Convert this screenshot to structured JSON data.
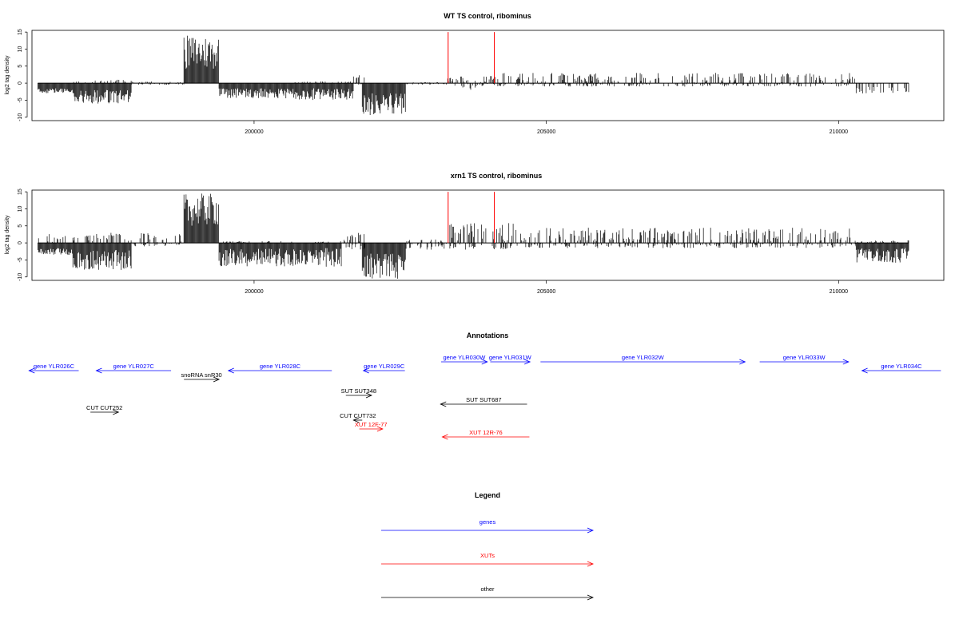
{
  "colors": {
    "gene": "#0000ff",
    "xut": "#ff0000",
    "other": "#000000",
    "marker": "#ff0000",
    "bars": "#000000"
  },
  "chart_data": [
    {
      "type": "bar",
      "title": "WT TS control, ribominus",
      "ylabel": "log2 tag density",
      "xlim": [
        196200,
        211800
      ],
      "ylim": [
        -11,
        15.5
      ],
      "yticks": [
        15,
        10,
        5,
        0,
        -5,
        -10
      ],
      "xticks": [
        200000,
        205000,
        210000
      ],
      "marker_positions": [
        203320,
        204110
      ],
      "segments": [
        {
          "from": 196300,
          "to": 196900,
          "min": 0,
          "max": 0,
          "neg_min": -1.5,
          "neg_max": -3
        },
        {
          "from": 196900,
          "to": 197000,
          "min": 0,
          "max": 0,
          "neg_min": 0,
          "neg_max": 0
        },
        {
          "from": 196900,
          "to": 197900,
          "min": 0,
          "max": 1,
          "neg_min": -2,
          "neg_max": -6
        },
        {
          "from": 197900,
          "to": 198800,
          "min": 0,
          "max": 0.5,
          "neg_min": 0,
          "neg_max": -0.5
        },
        {
          "from": 198800,
          "to": 199400,
          "min": 4,
          "max": 14,
          "neg_min": 0,
          "neg_max": 0
        },
        {
          "from": 199400,
          "to": 200700,
          "min": 0,
          "max": 0,
          "neg_min": -1.5,
          "neg_max": -4.5
        },
        {
          "from": 200700,
          "to": 201700,
          "min": 0,
          "max": 0.5,
          "neg_min": -1.5,
          "neg_max": -5
        },
        {
          "from": 201700,
          "to": 201900,
          "min": 1,
          "max": 2.5,
          "neg_min": 0,
          "neg_max": -0.5
        },
        {
          "from": 201850,
          "to": 202600,
          "min": 0,
          "max": 0,
          "neg_min": -3,
          "neg_max": -9.5
        },
        {
          "from": 202600,
          "to": 203300,
          "min": 0,
          "max": 0.3,
          "neg_min": 0,
          "neg_max": -0.5
        },
        {
          "from": 203300,
          "to": 203800,
          "min": 0,
          "max": 2,
          "neg_min": 0,
          "neg_max": -2
        },
        {
          "from": 203800,
          "to": 210300,
          "min": 0,
          "max": 3,
          "neg_min": 0,
          "neg_max": -1
        },
        {
          "from": 210300,
          "to": 211200,
          "min": 0,
          "max": 0,
          "neg_min": -1,
          "neg_max": -3
        }
      ]
    },
    {
      "type": "bar",
      "title": "xrn1 TS control, ribominus",
      "ylabel": "log2 tag density",
      "xlim": [
        196200,
        211800
      ],
      "ylim": [
        -11,
        15.5
      ],
      "yticks": [
        15,
        10,
        5,
        0,
        -5,
        -10
      ],
      "xticks": [
        200000,
        205000,
        210000
      ],
      "marker_positions": [
        203320,
        204110
      ],
      "segments": [
        {
          "from": 196300,
          "to": 196900,
          "min": 0,
          "max": 3,
          "neg_min": -1.5,
          "neg_max": -3.5
        },
        {
          "from": 196900,
          "to": 197900,
          "min": 0,
          "max": 3,
          "neg_min": -2,
          "neg_max": -8
        },
        {
          "from": 197900,
          "to": 198800,
          "min": 0,
          "max": 3,
          "neg_min": 0,
          "neg_max": -1
        },
        {
          "from": 198800,
          "to": 199400,
          "min": 5,
          "max": 14.5,
          "neg_min": 0,
          "neg_max": 0
        },
        {
          "from": 199400,
          "to": 201500,
          "min": 0,
          "max": 0.5,
          "neg_min": -1.5,
          "neg_max": -7
        },
        {
          "from": 201500,
          "to": 201900,
          "min": 0,
          "max": 3,
          "neg_min": 0,
          "neg_max": -2
        },
        {
          "from": 201850,
          "to": 202600,
          "min": 0,
          "max": 0,
          "neg_min": -3,
          "neg_max": -10.5
        },
        {
          "from": 202600,
          "to": 203300,
          "min": 0,
          "max": 1,
          "neg_min": 0,
          "neg_max": -2
        },
        {
          "from": 203300,
          "to": 204500,
          "min": 0.5,
          "max": 6,
          "neg_min": 0,
          "neg_max": -2
        },
        {
          "from": 204500,
          "to": 210300,
          "min": 0.5,
          "max": 4.5,
          "neg_min": 0,
          "neg_max": -1.5
        },
        {
          "from": 210300,
          "to": 211200,
          "min": 0,
          "max": 1,
          "neg_min": -1.5,
          "neg_max": -6
        }
      ]
    }
  ],
  "annotations": {
    "title": "Annotations",
    "items": [
      {
        "label": "gene YLR026C",
        "type": "gene",
        "start": 196150,
        "end": 197000,
        "dir": "-",
        "row": 0
      },
      {
        "label": "gene YLR027C",
        "type": "gene",
        "start": 197300,
        "end": 198580,
        "dir": "-",
        "row": 0
      },
      {
        "label": "snoRNA snR30",
        "type": "other",
        "start": 198800,
        "end": 199400,
        "dir": "+",
        "row": 1
      },
      {
        "label": "gene YLR028C",
        "type": "gene",
        "start": 199560,
        "end": 201330,
        "dir": "-",
        "row": 0
      },
      {
        "label": "gene YLR029C",
        "type": "gene",
        "start": 201870,
        "end": 202580,
        "dir": "-",
        "row": 0
      },
      {
        "label": "gene YLR030W",
        "type": "gene",
        "start": 203200,
        "end": 203990,
        "dir": "+",
        "row": -1
      },
      {
        "label": "gene YLR031W",
        "type": "gene",
        "start": 204040,
        "end": 204720,
        "dir": "+",
        "row": -1
      },
      {
        "label": "gene YLR032W",
        "type": "gene",
        "start": 204900,
        "end": 208400,
        "dir": "+",
        "row": -1
      },
      {
        "label": "gene YLR033W",
        "type": "gene",
        "start": 208650,
        "end": 210170,
        "dir": "+",
        "row": -1
      },
      {
        "label": "gene YLR034C",
        "type": "gene",
        "start": 210400,
        "end": 211750,
        "dir": "-",
        "row": 0
      },
      {
        "label": "SUT SUT348",
        "type": "other",
        "start": 201570,
        "end": 202010,
        "dir": "+",
        "row": 2
      },
      {
        "label": "SUT SUT687",
        "type": "other",
        "start": 203190,
        "end": 204670,
        "dir": "-",
        "row": 3
      },
      {
        "label": "CUT CUT252",
        "type": "other",
        "start": 197200,
        "end": 197680,
        "dir": "+",
        "row": 4
      },
      {
        "label": "CUT CUT732",
        "type": "other",
        "start": 201700,
        "end": 201850,
        "dir": "-",
        "row": 5
      },
      {
        "label": "XUT 12F-77",
        "type": "xut",
        "start": 201800,
        "end": 202200,
        "dir": "+",
        "row": 6
      },
      {
        "label": "XUT 12R-76",
        "type": "xut",
        "start": 203220,
        "end": 204710,
        "dir": "-",
        "row": 7
      }
    ]
  },
  "legend": {
    "title": "Legend",
    "items": [
      {
        "label": "genes",
        "type": "gene"
      },
      {
        "label": "XUTs",
        "type": "xut"
      },
      {
        "label": "other",
        "type": "other"
      }
    ]
  }
}
